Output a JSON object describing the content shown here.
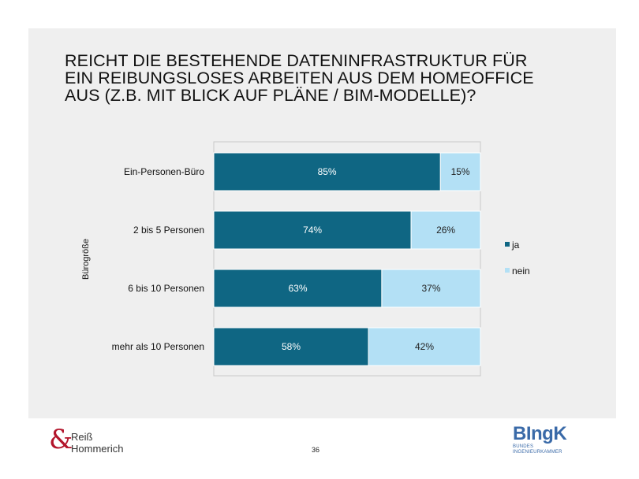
{
  "title_lines": [
    "REICHT DIE BESTEHENDE DATENINFRASTRUKTUR FÜR",
    "EIN REIBUNGSLOSES ARBEITEN AUS DEM HOMEOFFICE",
    "AUS (Z.B. MIT BLICK AUF PLÄNE / BIM-MODELLE)?"
  ],
  "chart_data": {
    "type": "bar",
    "orientation": "horizontal",
    "stacked": true,
    "percent_stacked": true,
    "title": "REICHT DIE BESTEHENDE DATENINFRASTRUKTUR FÜR EIN REIBUNGSLOSES ARBEITEN AUS DEM HOMEOFFICE AUS (Z.B. MIT BLICK AUF PLÄNE / BIM-MODELLE)?",
    "ylabel": "Bürogröße",
    "xlabel": "",
    "xlim": [
      0,
      100
    ],
    "categories": [
      "Ein-Personen-Büro",
      "2 bis 5 Personen",
      "6 bis 10 Personen",
      "mehr als 10 Personen"
    ],
    "series": [
      {
        "name": "ja",
        "color": "#0f6683",
        "values": [
          85,
          74,
          63,
          58
        ],
        "labels": [
          "85%",
          "74%",
          "63%",
          "58%"
        ]
      },
      {
        "name": "nein",
        "color": "#b3e0f5",
        "values": [
          15,
          26,
          37,
          42
        ],
        "labels": [
          "15%",
          "26%",
          "37%",
          "42%"
        ]
      }
    ],
    "legend_position": "right",
    "grid": false
  },
  "footer": {
    "left_logo_symbol": "&",
    "left_logo_line1": "Reiß",
    "left_logo_line2": "Hommerich",
    "page_number": "36",
    "right_logo_main": "BIngK",
    "right_logo_line1": "BUNDES",
    "right_logo_line2": "INGENIEURKAMMER"
  }
}
